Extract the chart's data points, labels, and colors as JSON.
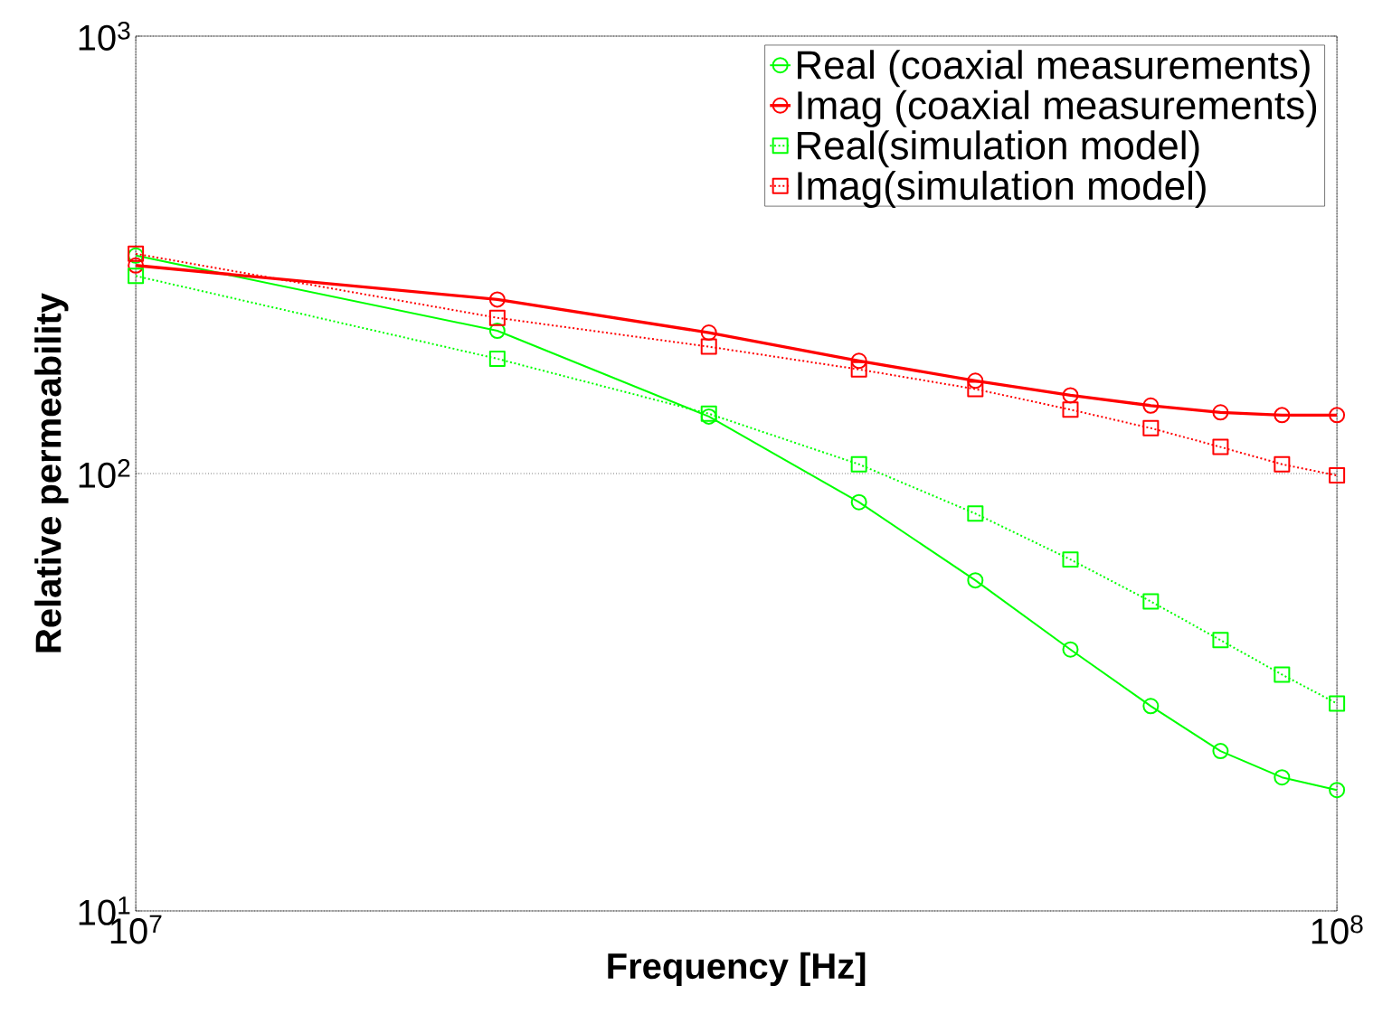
{
  "chart_data": {
    "type": "line",
    "xlabel": "Frequency [Hz]",
    "ylabel": "Relative permeability",
    "log": "xy",
    "x": [
      10000000,
      20000000,
      30000000,
      40000000,
      50000000,
      60000000,
      70000000,
      80000000,
      90000000,
      100000000
    ],
    "xlim": [
      10000000,
      100000000
    ],
    "ylim": [
      10,
      1000
    ],
    "xticks": [
      {
        "value": 10000000,
        "label": "10$^{7}$"
      },
      {
        "value": 100000000,
        "label": "10$^{8}$"
      }
    ],
    "yticks": [
      {
        "value": 10,
        "label": "10$^{1}$"
      },
      {
        "value": 100,
        "label": "10$^{2}$"
      },
      {
        "value": 1000,
        "label": "10$^{3}$"
      }
    ],
    "grid": true,
    "legend": "top right",
    "series": [
      {
        "name": "Real (coaxial measurements)",
        "color": "#00ff00",
        "marker": "circle",
        "line_style": "solid",
        "values": [
          315,
          212,
          135,
          86,
          57,
          39.6,
          29.4,
          23.2,
          20.2,
          18.9
        ]
      },
      {
        "name": "Imag (coaxial measurements)",
        "color": "#ff0000",
        "marker": "circle",
        "line_style": "solid",
        "values": [
          299,
          250,
          210,
          181,
          163,
          151,
          143,
          138,
          136,
          136
        ]
      },
      {
        "name": "Real(simulation model)",
        "color": "#00ff00",
        "marker": "square",
        "line_style": "dotted",
        "values": [
          283,
          183,
          137,
          105,
          81,
          63.6,
          51,
          41.6,
          34.7,
          29.8
        ]
      },
      {
        "name": "Imag(simulation model)",
        "color": "#ff0000",
        "marker": "square",
        "line_style": "dotted",
        "values": [
          318,
          227,
          195,
          173,
          156,
          140,
          127,
          115,
          105,
          99
        ]
      }
    ]
  }
}
